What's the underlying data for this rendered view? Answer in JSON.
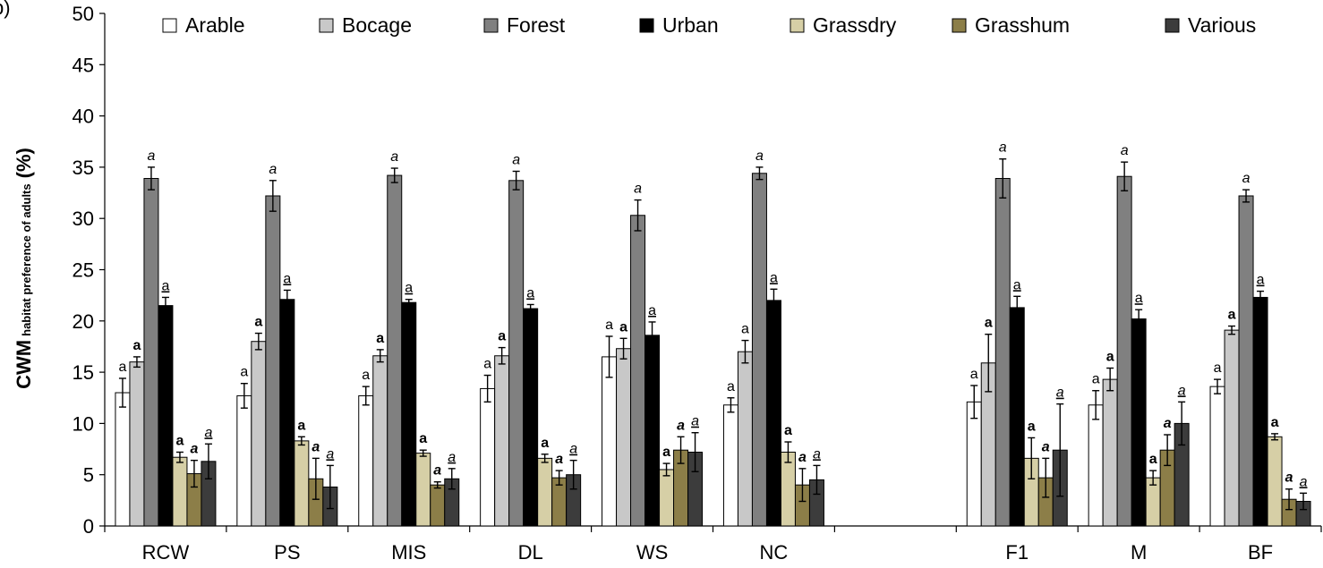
{
  "chart_data": {
    "type": "bar",
    "panel_label": "b)",
    "ylabel_main": "CWM",
    "ylabel_sub": "habitat preference of adults",
    "ylabel_unit": "(%)",
    "ylim": [
      0,
      50
    ],
    "yticks": [
      "0",
      "5",
      "10",
      "15",
      "20",
      "25",
      "30",
      "35",
      "40",
      "45",
      "50"
    ],
    "categories": [
      "RCW",
      "PS",
      "MIS",
      "DL",
      "WS",
      "NC",
      "",
      "F1",
      "M",
      "BF"
    ],
    "legend_position": "top",
    "error_bars": true,
    "series": [
      {
        "name": "Arable",
        "color": "#ffffff",
        "values": [
          13.0,
          12.7,
          12.7,
          13.4,
          16.5,
          11.8,
          null,
          12.1,
          11.8,
          13.6
        ],
        "errors": [
          1.4,
          1.2,
          0.9,
          1.3,
          2.0,
          0.7,
          null,
          1.6,
          1.4,
          0.7
        ],
        "sig": [
          {
            "t": "a"
          },
          {
            "t": "a"
          },
          {
            "t": "a"
          },
          {
            "t": "a"
          },
          {
            "t": "a"
          },
          {
            "t": "a"
          },
          null,
          {
            "t": "a"
          },
          {
            "t": "a"
          },
          {
            "t": "a"
          }
        ]
      },
      {
        "name": "Bocage",
        "color": "#c8c8c8",
        "values": [
          16.0,
          18.0,
          16.6,
          16.6,
          17.3,
          17.0,
          null,
          15.9,
          14.3,
          19.1
        ],
        "errors": [
          0.5,
          0.8,
          0.6,
          0.8,
          1.0,
          1.1,
          null,
          2.8,
          1.1,
          0.4
        ],
        "sig": [
          {
            "t": "a",
            "b": 1
          },
          {
            "t": "a",
            "b": 1
          },
          {
            "t": "a",
            "b": 1
          },
          {
            "t": "a",
            "b": 1
          },
          {
            "t": "a",
            "b": 1
          },
          {
            "t": "a"
          },
          null,
          {
            "t": "a",
            "b": 1
          },
          {
            "t": "a",
            "b": 1
          },
          {
            "t": "a",
            "b": 1
          }
        ]
      },
      {
        "name": "Forest",
        "color": "#808080",
        "values": [
          33.9,
          32.2,
          34.2,
          33.7,
          30.3,
          34.4,
          null,
          33.9,
          34.1,
          32.2
        ],
        "errors": [
          1.1,
          1.5,
          0.7,
          0.9,
          1.5,
          0.6,
          null,
          1.9,
          1.4,
          0.6
        ],
        "sig": [
          {
            "t": "a",
            "i": 1
          },
          {
            "t": "a",
            "i": 1
          },
          {
            "t": "a",
            "i": 1
          },
          {
            "t": "a",
            "i": 1
          },
          {
            "t": "a",
            "i": 1
          },
          {
            "t": "a",
            "i": 1
          },
          null,
          {
            "t": "a",
            "i": 1
          },
          {
            "t": "a",
            "i": 1
          },
          {
            "t": "a",
            "i": 1
          }
        ]
      },
      {
        "name": "Urban",
        "color": "#000000",
        "values": [
          21.5,
          22.1,
          21.8,
          21.2,
          18.6,
          22.0,
          null,
          21.3,
          20.2,
          22.3
        ],
        "errors": [
          0.8,
          0.9,
          0.3,
          0.4,
          1.3,
          1.1,
          null,
          1.1,
          0.9,
          0.6
        ],
        "sig": [
          {
            "t": "a",
            "u": 1
          },
          {
            "t": "a",
            "u": 1
          },
          {
            "t": "a",
            "u": 1
          },
          {
            "t": "a",
            "u": 1
          },
          {
            "t": "a",
            "u": 1
          },
          {
            "t": "a",
            "u": 1
          },
          null,
          {
            "t": "a",
            "u": 1
          },
          {
            "t": "a",
            "u": 1
          },
          {
            "t": "a",
            "u": 1
          }
        ]
      },
      {
        "name": "Grassdry",
        "color": "#d6cfa6",
        "values": [
          6.7,
          8.3,
          7.1,
          6.6,
          5.5,
          7.2,
          null,
          6.6,
          4.7,
          8.7
        ],
        "errors": [
          0.5,
          0.4,
          0.3,
          0.4,
          0.6,
          1.0,
          null,
          2.0,
          0.7,
          0.3
        ],
        "sig": [
          {
            "t": "a",
            "b": 1
          },
          {
            "t": "a",
            "b": 1
          },
          {
            "t": "a",
            "b": 1
          },
          {
            "t": "a",
            "b": 1
          },
          {
            "t": "a",
            "b": 1
          },
          {
            "t": "a",
            "b": 1
          },
          null,
          {
            "t": "a",
            "b": 1
          },
          {
            "t": "a",
            "b": 1
          },
          {
            "t": "a",
            "b": 1
          }
        ]
      },
      {
        "name": "Grasshum",
        "color": "#8c7e48",
        "values": [
          5.1,
          4.6,
          4.0,
          4.7,
          7.4,
          4.0,
          null,
          4.7,
          7.4,
          2.6
        ],
        "errors": [
          1.3,
          2.0,
          0.3,
          0.7,
          1.3,
          1.6,
          null,
          1.9,
          1.5,
          1.0
        ],
        "sig": [
          {
            "t": "a",
            "b": 1,
            "i": 1
          },
          {
            "t": "a",
            "b": 1,
            "i": 1
          },
          {
            "t": "a",
            "b": 1,
            "i": 1
          },
          {
            "t": "a",
            "b": 1,
            "i": 1
          },
          {
            "t": "a",
            "b": 1,
            "i": 1
          },
          {
            "t": "a",
            "b": 1,
            "i": 1
          },
          null,
          {
            "t": "a",
            "b": 1,
            "i": 1
          },
          {
            "t": "a",
            "b": 1,
            "i": 1
          },
          {
            "t": "a",
            "b": 1,
            "i": 1
          }
        ]
      },
      {
        "name": "Various",
        "color": "#3c3c3c",
        "values": [
          6.3,
          3.8,
          4.6,
          5.0,
          7.2,
          4.5,
          null,
          7.4,
          10.0,
          2.4
        ],
        "errors": [
          1.7,
          2.1,
          1.0,
          1.4,
          1.9,
          1.4,
          null,
          4.5,
          2.1,
          0.8
        ],
        "sig": [
          {
            "t": "a",
            "i": 1,
            "u": 1
          },
          {
            "t": "a",
            "i": 1,
            "u": 1
          },
          {
            "t": "a",
            "i": 1,
            "u": 1
          },
          {
            "t": "a",
            "i": 1,
            "u": 1
          },
          {
            "t": "a",
            "i": 1,
            "u": 1
          },
          {
            "t": "a",
            "i": 1,
            "u": 1
          },
          null,
          {
            "t": "a",
            "i": 1,
            "u": 1
          },
          {
            "t": "a",
            "i": 1,
            "u": 1
          },
          {
            "t": "a",
            "i": 1,
            "u": 1
          }
        ]
      }
    ]
  }
}
